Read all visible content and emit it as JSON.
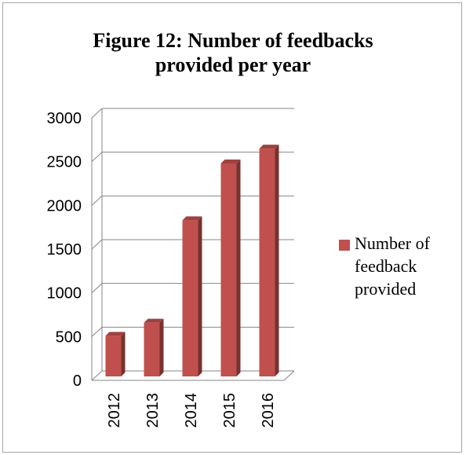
{
  "chart_data": {
    "type": "bar",
    "title_lines": [
      "Figure 12: Number of feedbacks",
      "provided per year"
    ],
    "categories": [
      "2012",
      "2013",
      "2014",
      "2015",
      "2016"
    ],
    "series": [
      {
        "name": "Number of feedback provided",
        "name_lines": [
          "Number of",
          "feedback",
          "provided"
        ],
        "values": [
          500,
          650,
          1820,
          2470,
          2640
        ],
        "color": "#c0504d"
      }
    ],
    "ylim": [
      0,
      3000
    ],
    "yticks": [
      "0",
      "500",
      "1000",
      "1500",
      "2000",
      "2500",
      "3000"
    ],
    "grid": true,
    "three_d": true,
    "legend_position": "right"
  }
}
